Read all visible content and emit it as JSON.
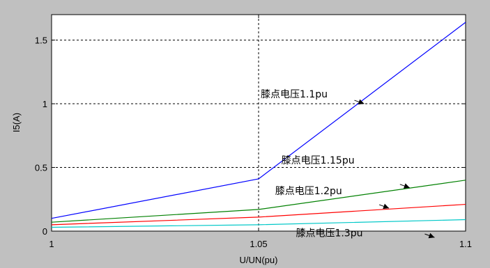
{
  "chart_data": {
    "type": "line",
    "title": "",
    "xlabel": "U/UN(pu)",
    "ylabel": "I5(A)",
    "xlim": [
      1,
      1.1
    ],
    "ylim": [
      0,
      1.7
    ],
    "xticks": [
      1,
      1.05,
      1.1
    ],
    "xtick_labels": [
      "1",
      "1.05",
      "1.1"
    ],
    "yticks": [
      0,
      0.5,
      1,
      1.5
    ],
    "ytick_labels": [
      "0",
      "0.5",
      "1",
      "1.5"
    ],
    "grid": true,
    "legend": "none",
    "series": [
      {
        "color": "#0000ff",
        "x": [
          1,
          1.05,
          1.1
        ],
        "y": [
          0.1,
          0.41,
          1.64
        ]
      },
      {
        "color": "#008000",
        "x": [
          1,
          1.05,
          1.1
        ],
        "y": [
          0.07,
          0.17,
          0.4
        ]
      },
      {
        "color": "#ff0000",
        "x": [
          1,
          1.05,
          1.1
        ],
        "y": [
          0.05,
          0.11,
          0.21
        ]
      },
      {
        "color": "#00c8c8",
        "x": [
          1,
          1.05,
          1.1
        ],
        "y": [
          0.03,
          0.05,
          0.09
        ]
      }
    ],
    "annotations": [
      {
        "text": "膝点电压1.1pu",
        "text_at": [
          1.0505,
          1.05
        ],
        "arrow_to": [
          1.0755,
          1.0
        ]
      },
      {
        "text": "膝点电压1.15pu",
        "text_at": [
          1.0555,
          0.53
        ],
        "arrow_to": [
          1.0865,
          0.34
        ]
      },
      {
        "text": "膝点电压1.2pu",
        "text_at": [
          1.054,
          0.29
        ],
        "arrow_to": [
          1.0815,
          0.18
        ]
      },
      {
        "text": "膝点电压1.3pu",
        "text_at": [
          1.059,
          -0.04
        ],
        "arrow_to": [
          1.0925,
          -0.05
        ]
      }
    ]
  }
}
